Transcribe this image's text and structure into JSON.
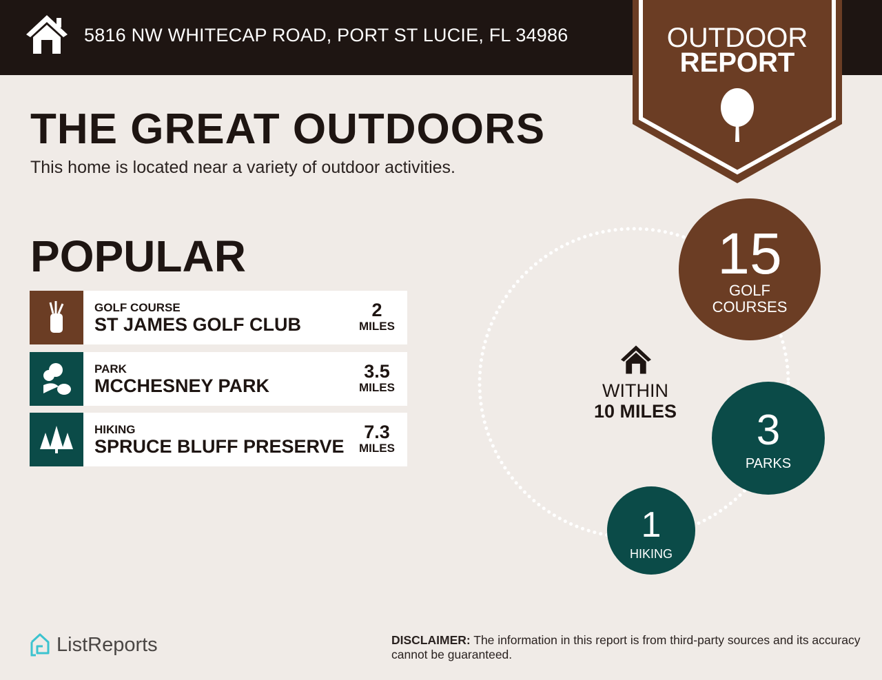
{
  "header": {
    "address": "5816 NW WHITECAP ROAD, PORT ST LUCIE, FL 34986",
    "home_icon": "house-icon"
  },
  "badge": {
    "line1": "OUTDOOR",
    "line2": "REPORT",
    "icon": "tree-icon",
    "color": "#6b3d24"
  },
  "title": "THE GREAT OUTDOORS",
  "subtitle": "This home is located near a variety of outdoor activities.",
  "popular": {
    "heading": "POPULAR",
    "items": [
      {
        "category": "GOLF COURSE",
        "name": "ST JAMES GOLF CLUB",
        "distance": "2",
        "unit": "MILES",
        "icon": "golf-bag-icon",
        "color": "#6b3d24"
      },
      {
        "category": "PARK",
        "name": "MCCHESNEY PARK",
        "distance": "3.5",
        "unit": "MILES",
        "icon": "park-icon",
        "color": "#0b4b48"
      },
      {
        "category": "HIKING",
        "name": "SPRUCE BLUFF PRESERVE",
        "distance": "7.3",
        "unit": "MILES",
        "icon": "pine-trees-icon",
        "color": "#0b4b48"
      }
    ]
  },
  "radius": {
    "line1": "WITHIN",
    "line2": "10 MILES",
    "icon": "house-icon"
  },
  "counts": [
    {
      "value": "15",
      "label_line1": "GOLF",
      "label_line2": "COURSES",
      "color": "#6b3d24"
    },
    {
      "value": "3",
      "label_line1": "PARKS",
      "label_line2": "",
      "color": "#0b4b48"
    },
    {
      "value": "1",
      "label_line1": "HIKING",
      "label_line2": "",
      "color": "#0b4b48"
    }
  ],
  "footer": {
    "logo": "ListReports",
    "disclaimer_label": "DISCLAIMER:",
    "disclaimer": " The information in this report is from third-party sources and its accuracy cannot be guaranteed."
  }
}
